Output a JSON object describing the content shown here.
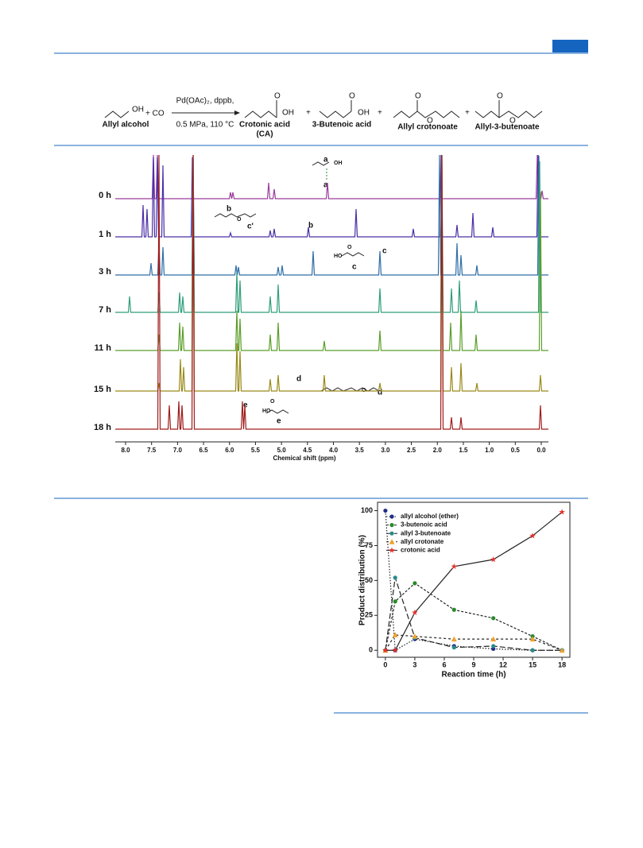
{
  "scheme": {
    "reagent": "+ CO",
    "conditions_top": "Pd(OAc)₂, dppb,",
    "conditions_bottom": "0.5 MPa, 110 °C",
    "plus": [
      "+",
      "+",
      "+"
    ],
    "atoms": [
      "OH",
      "O",
      "OH",
      "O",
      "OH",
      "O",
      "O",
      "O",
      "O"
    ],
    "labels": [
      "Allyl alcohol",
      "Crotonic acid",
      "(CA)",
      "3-Butenoic acid",
      "Allyl crotonoate",
      "Allyl-3-butenoate"
    ]
  },
  "nmr": {
    "times": [
      "0 h",
      "1 h",
      "3 h",
      "7 h",
      "11 h",
      "15 h",
      "18 h"
    ],
    "ticks": [
      "8.0",
      "7.5",
      "7.0",
      "6.5",
      "6.0",
      "5.5",
      "5.0",
      "4.5",
      "4.0",
      "3.5",
      "3.0",
      "2.5",
      "2.0",
      "1.5",
      "1.0",
      "0.5",
      "0.0"
    ],
    "axis_title": "Chemical shift (ppm)",
    "annotations": [
      "a",
      "a",
      "OH",
      "b",
      "b",
      "O",
      "c'",
      "c",
      "HO",
      "O",
      "c",
      "d",
      "O",
      "d",
      "e",
      "HO",
      "O",
      "e"
    ]
  },
  "chart_data": {
    "type": "line",
    "x": [
      0,
      1,
      3,
      7,
      11,
      15,
      18
    ],
    "series": [
      {
        "name": "allyl alcohol (ether)",
        "color": "#1f2f8a",
        "marker": "circle",
        "dash": "1.5,2",
        "values": [
          100,
          0,
          8,
          3,
          1,
          0,
          0
        ]
      },
      {
        "name": "3-butenoic acid",
        "color": "#2a8a2a",
        "marker": "circle",
        "dash": "3,2",
        "values": [
          0,
          35,
          48,
          29,
          23,
          10,
          0
        ]
      },
      {
        "name": "allyl 3-butenoate",
        "color": "#2a8a8a",
        "marker": "circle",
        "dash": "7,3",
        "values": [
          0,
          52,
          9,
          2,
          3,
          0,
          0
        ]
      },
      {
        "name": "allyl crotonate",
        "color": "#f0a030",
        "marker": "triangle",
        "dash": "3,3",
        "values": [
          0,
          11,
          10,
          8,
          8,
          8,
          0
        ]
      },
      {
        "name": "crotonic acid",
        "color": "#e8302a",
        "marker": "star",
        "dash": "none",
        "values": [
          0,
          0,
          27,
          60,
          65,
          82,
          99
        ]
      }
    ],
    "xlabel": "Reaction time (h)",
    "ylabel": "Product distribution (%)",
    "xlim": [
      -0.8,
      18.8
    ],
    "ylim": [
      -5,
      106
    ],
    "xticks": [
      0,
      3,
      6,
      9,
      12,
      15,
      18
    ],
    "yticks": [
      0,
      25,
      50,
      75,
      100
    ],
    "legend": "upper left"
  }
}
